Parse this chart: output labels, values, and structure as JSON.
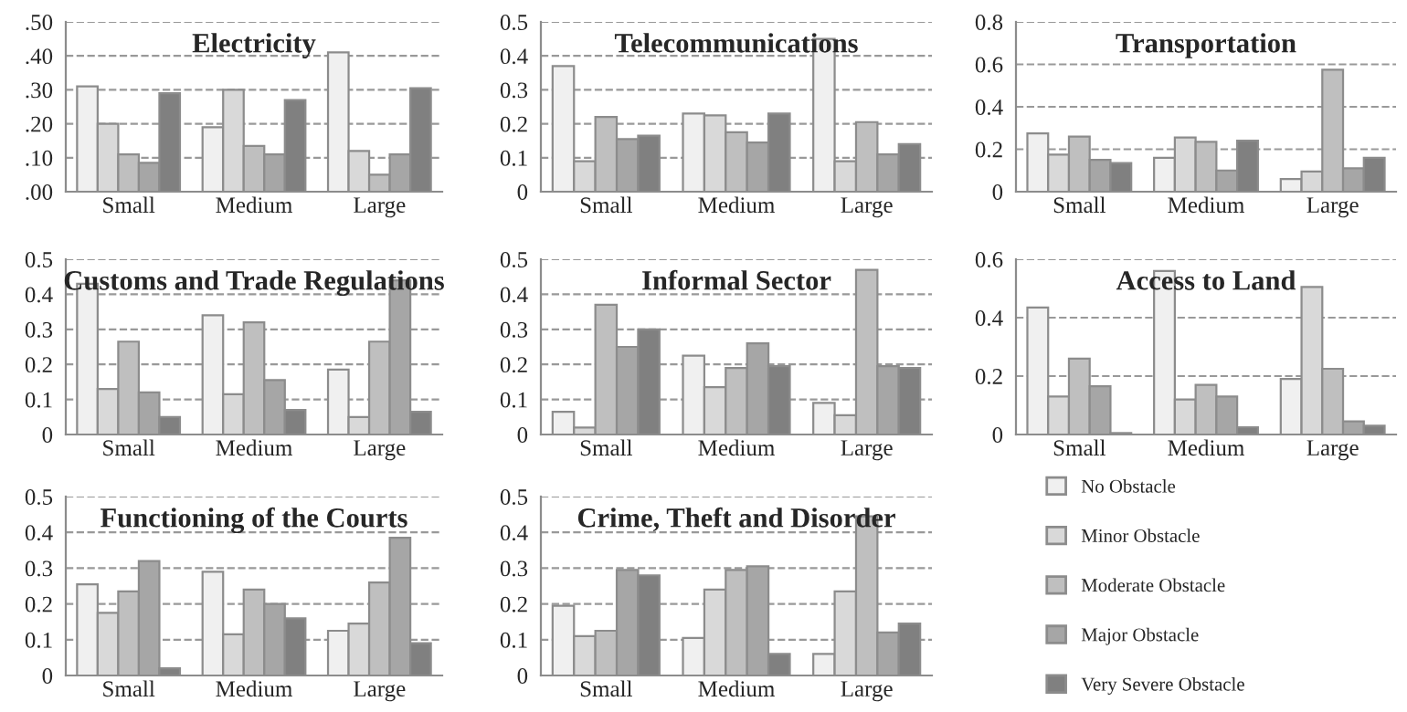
{
  "chart_data": [
    {
      "type": "bar",
      "title": "Electricity",
      "categories": [
        "Small",
        "Medium",
        "Large"
      ],
      "ylim": [
        0,
        0.5
      ],
      "yticks": [
        {
          "value": 0,
          "label": ".00"
        },
        {
          "value": 0.1,
          "label": ".10"
        },
        {
          "value": 0.2,
          "label": ".20"
        },
        {
          "value": 0.3,
          "label": ".30"
        },
        {
          "value": 0.4,
          "label": ".40"
        },
        {
          "value": 0.5,
          "label": ".50"
        }
      ],
      "grid": "y",
      "series": [
        {
          "color": "#f0f0f0",
          "values": [
            0.31,
            0.19,
            0.41
          ]
        },
        {
          "color": "#d9d9d9",
          "values": [
            0.2,
            0.3,
            0.12
          ]
        },
        {
          "color": "#bfbfbf",
          "values": [
            0.11,
            0.135,
            0.05
          ]
        },
        {
          "color": "#a6a6a6",
          "values": [
            0.085,
            0.11,
            0.11
          ]
        },
        {
          "color": "#808080",
          "values": [
            0.29,
            0.27,
            0.305
          ]
        }
      ]
    },
    {
      "type": "bar",
      "title": "Telecommunications",
      "categories": [
        "Small",
        "Medium",
        "Large"
      ],
      "ylim": [
        0,
        0.5
      ],
      "yticks": [
        0,
        0.1,
        0.2,
        0.3,
        0.4,
        0.5
      ],
      "grid": "y",
      "series": [
        {
          "color": "#f0f0f0",
          "values": [
            0.37,
            0.23,
            0.45
          ]
        },
        {
          "color": "#d9d9d9",
          "values": [
            0.09,
            0.225,
            0.09
          ]
        },
        {
          "color": "#bfbfbf",
          "values": [
            0.22,
            0.175,
            0.205
          ]
        },
        {
          "color": "#a6a6a6",
          "values": [
            0.155,
            0.145,
            0.11
          ]
        },
        {
          "color": "#808080",
          "values": [
            0.165,
            0.23,
            0.14
          ]
        }
      ]
    },
    {
      "type": "bar",
      "title": "Transportation",
      "categories": [
        "Small",
        "Medium",
        "Large"
      ],
      "ylim": [
        0,
        0.8
      ],
      "yticks": [
        0,
        0.2,
        0.4,
        0.6,
        0.8
      ],
      "grid": "y",
      "series": [
        {
          "color": "#f0f0f0",
          "values": [
            0.275,
            0.16,
            0.06
          ]
        },
        {
          "color": "#d9d9d9",
          "values": [
            0.175,
            0.255,
            0.095
          ]
        },
        {
          "color": "#bfbfbf",
          "values": [
            0.26,
            0.235,
            0.575
          ]
        },
        {
          "color": "#a6a6a6",
          "values": [
            0.15,
            0.1,
            0.11
          ]
        },
        {
          "color": "#808080",
          "values": [
            0.135,
            0.24,
            0.16
          ]
        }
      ]
    },
    {
      "type": "bar",
      "title": "Customs and Trade Regulations",
      "categories": [
        "Small",
        "Medium",
        "Large"
      ],
      "ylim": [
        0,
        0.5
      ],
      "yticks": [
        0,
        0.1,
        0.2,
        0.3,
        0.4,
        0.5
      ],
      "grid": "y",
      "series": [
        {
          "color": "#f0f0f0",
          "values": [
            0.43,
            0.34,
            0.185
          ]
        },
        {
          "color": "#d9d9d9",
          "values": [
            0.13,
            0.115,
            0.05
          ]
        },
        {
          "color": "#bfbfbf",
          "values": [
            0.265,
            0.32,
            0.265
          ]
        },
        {
          "color": "#a6a6a6",
          "values": [
            0.12,
            0.155,
            0.44
          ]
        },
        {
          "color": "#808080",
          "values": [
            0.05,
            0.07,
            0.065
          ]
        }
      ]
    },
    {
      "type": "bar",
      "title": "Informal Sector",
      "categories": [
        "Small",
        "Medium",
        "Large"
      ],
      "ylim": [
        0,
        0.5
      ],
      "yticks": [
        0,
        0.1,
        0.2,
        0.3,
        0.4,
        0.5
      ],
      "grid": "y",
      "series": [
        {
          "color": "#f0f0f0",
          "values": [
            0.065,
            0.225,
            0.09
          ]
        },
        {
          "color": "#d9d9d9",
          "values": [
            0.02,
            0.135,
            0.055
          ]
        },
        {
          "color": "#bfbfbf",
          "values": [
            0.37,
            0.19,
            0.47
          ]
        },
        {
          "color": "#a6a6a6",
          "values": [
            0.25,
            0.26,
            0.195
          ]
        },
        {
          "color": "#808080",
          "values": [
            0.3,
            0.195,
            0.19
          ]
        }
      ]
    },
    {
      "type": "bar",
      "title": "Access to Land",
      "categories": [
        "Small",
        "Medium",
        "Large"
      ],
      "ylim": [
        0,
        0.6
      ],
      "yticks": [
        0,
        0.2,
        0.4,
        0.6
      ],
      "grid": "y",
      "series": [
        {
          "color": "#f0f0f0",
          "values": [
            0.435,
            0.56,
            0.19
          ]
        },
        {
          "color": "#d9d9d9",
          "values": [
            0.13,
            0.12,
            0.505
          ]
        },
        {
          "color": "#bfbfbf",
          "values": [
            0.26,
            0.17,
            0.225
          ]
        },
        {
          "color": "#a6a6a6",
          "values": [
            0.165,
            0.13,
            0.045
          ]
        },
        {
          "color": "#808080",
          "values": [
            0.005,
            0.025,
            0.03
          ]
        }
      ]
    },
    {
      "type": "bar",
      "title": "Functioning of the Courts",
      "categories": [
        "Small",
        "Medium",
        "Large"
      ],
      "ylim": [
        0,
        0.5
      ],
      "yticks": [
        0,
        0.1,
        0.2,
        0.3,
        0.4,
        0.5
      ],
      "grid": "y",
      "series": [
        {
          "color": "#f0f0f0",
          "values": [
            0.255,
            0.29,
            0.125
          ]
        },
        {
          "color": "#d9d9d9",
          "values": [
            0.175,
            0.115,
            0.145
          ]
        },
        {
          "color": "#bfbfbf",
          "values": [
            0.235,
            0.24,
            0.26
          ]
        },
        {
          "color": "#a6a6a6",
          "values": [
            0.32,
            0.2,
            0.385
          ]
        },
        {
          "color": "#808080",
          "values": [
            0.02,
            0.16,
            0.09
          ]
        }
      ]
    },
    {
      "type": "bar",
      "title": "Crime, Theft and Disorder",
      "categories": [
        "Small",
        "Medium",
        "Large"
      ],
      "ylim": [
        0,
        0.5
      ],
      "yticks": [
        0,
        0.1,
        0.2,
        0.3,
        0.4,
        0.5
      ],
      "grid": "y",
      "legend": "right",
      "series": [
        {
          "name": "No Obstacle",
          "color": "#f0f0f0",
          "values": [
            0.195,
            0.105,
            0.06
          ]
        },
        {
          "name": "Minor Obstacle",
          "color": "#d9d9d9",
          "values": [
            0.11,
            0.24,
            0.235
          ]
        },
        {
          "name": "Moderate Obstacle",
          "color": "#bfbfbf",
          "values": [
            0.125,
            0.295,
            0.445
          ]
        },
        {
          "name": "Major Obstacle",
          "color": "#a6a6a6",
          "values": [
            0.295,
            0.305,
            0.12
          ]
        },
        {
          "name": "Very Severe Obstacle",
          "color": "#808080",
          "values": [
            0.28,
            0.06,
            0.145
          ]
        }
      ]
    }
  ]
}
